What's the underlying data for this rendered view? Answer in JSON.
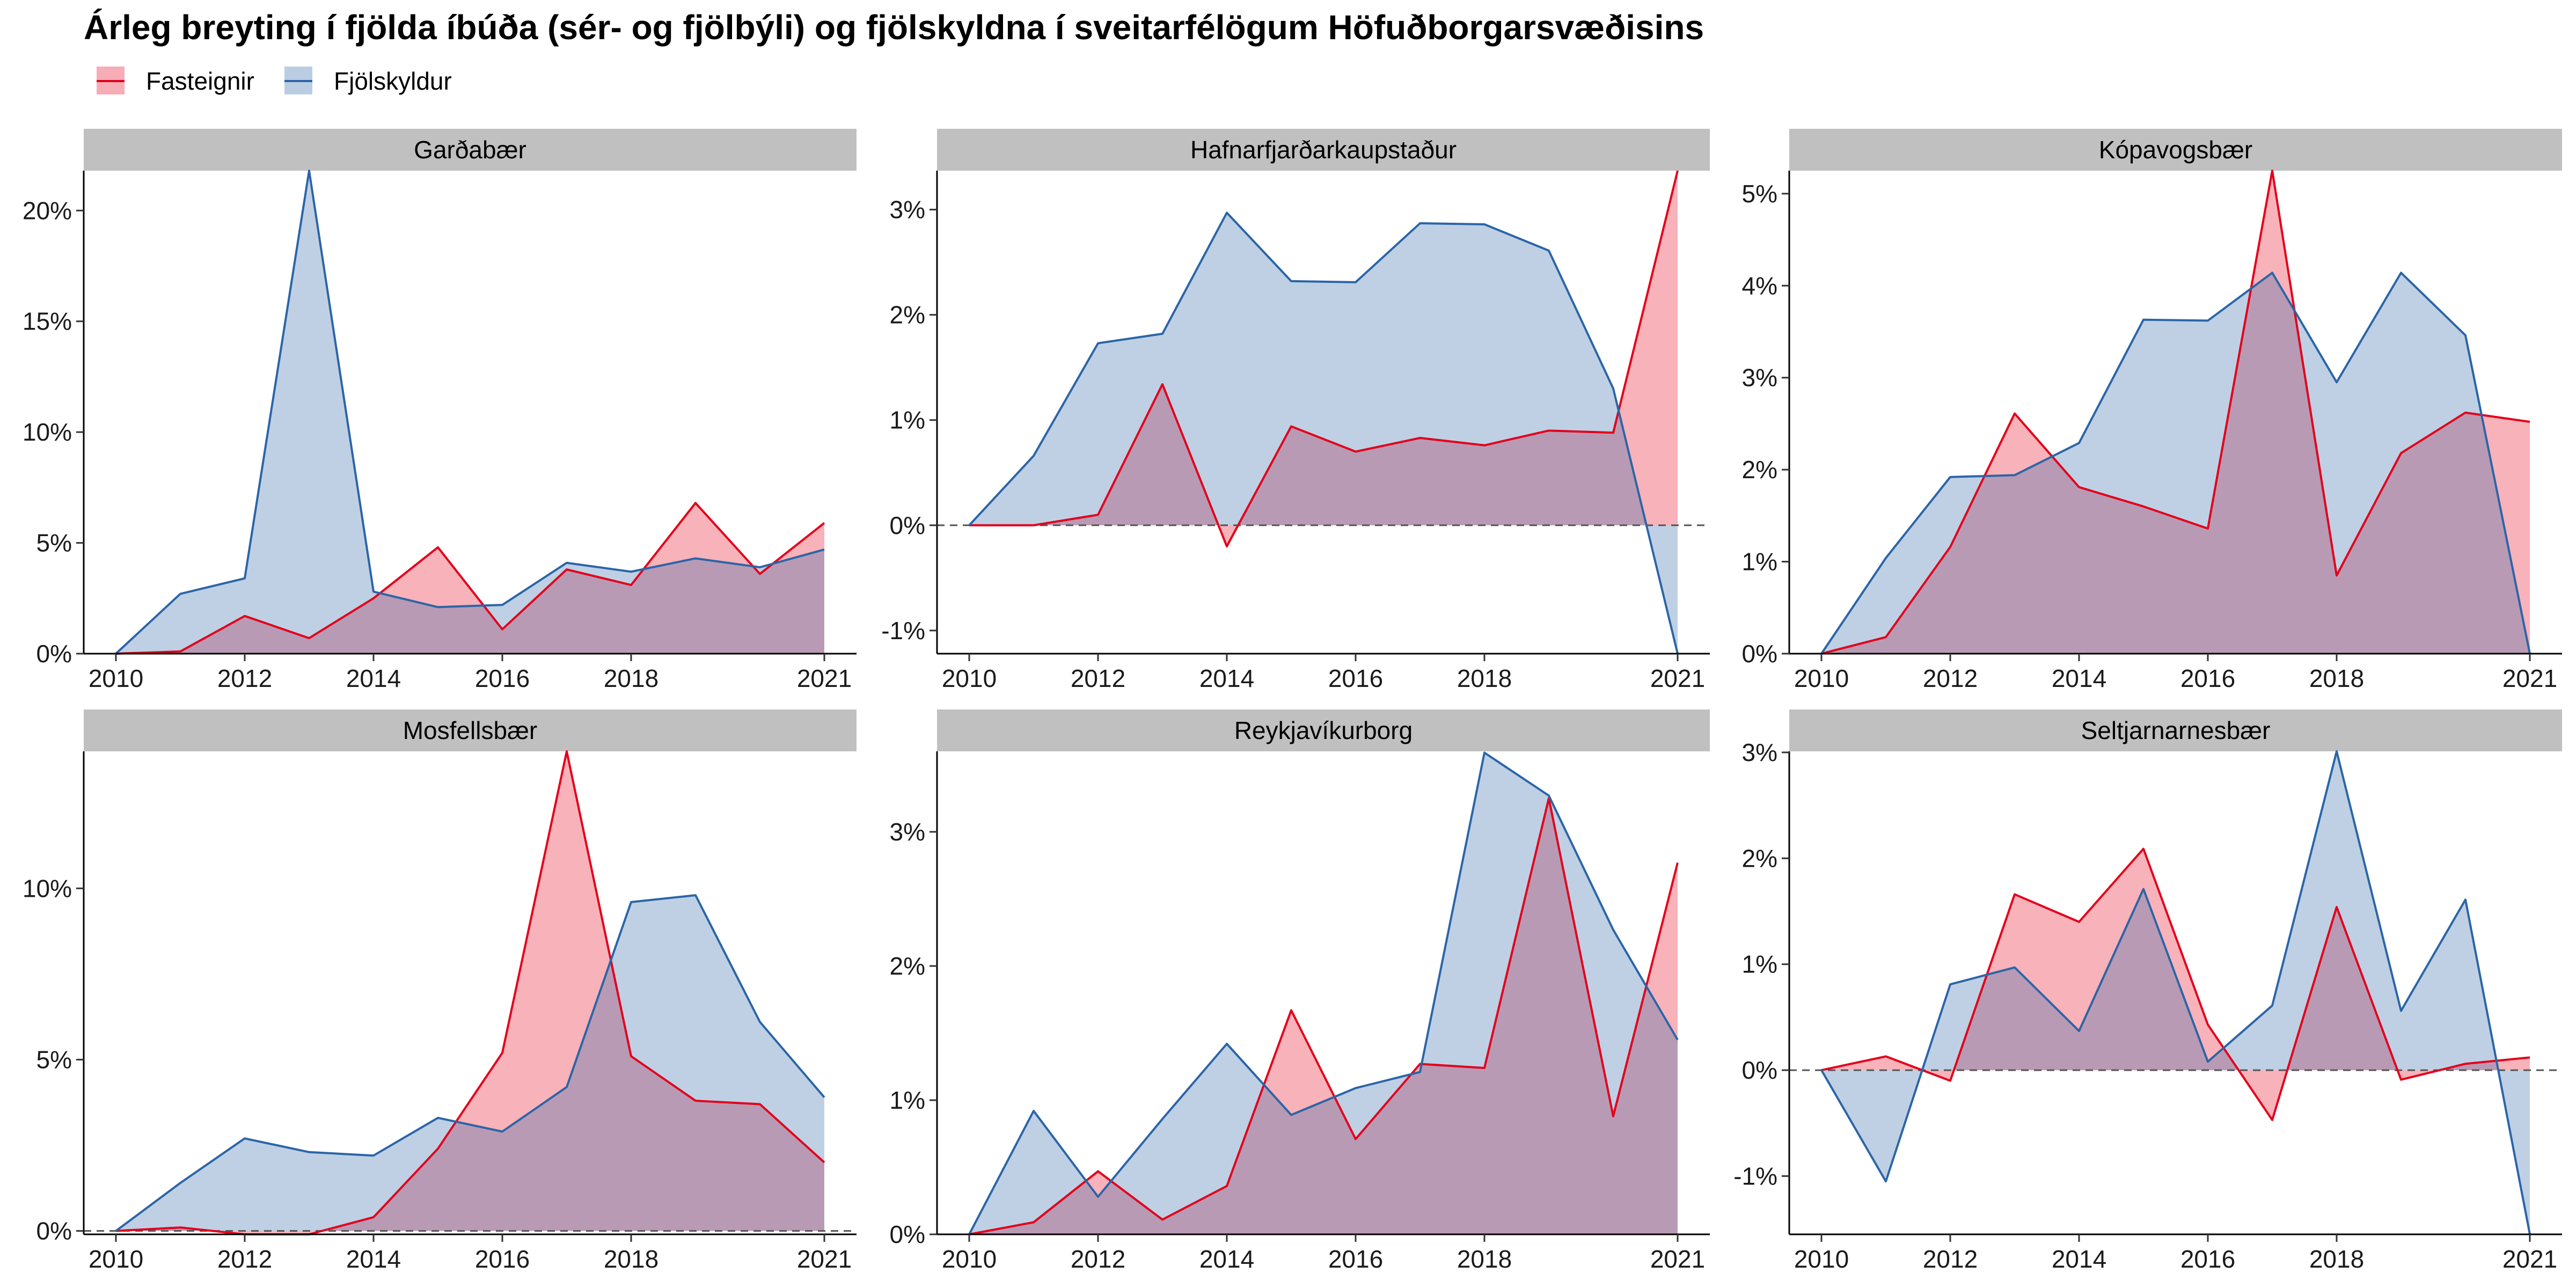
{
  "title": "Árleg breyting í fjölda íbúða (sér- og fjölbýli) og fjölskyldna í sveitarfélögum Höfuðborgarsvæðisins",
  "colors": {
    "fasteignir": "#e3001b",
    "fjolskyldur": "#2b65a7",
    "strip": "#c0c0c0"
  },
  "legend": [
    {
      "label": "Fasteignir",
      "key": "fasteignir"
    },
    {
      "label": "Fjölskyldur",
      "key": "fjolskyldur"
    }
  ],
  "chart_data": [
    {
      "type": "area",
      "facet": "Garðabær",
      "x": [
        2010,
        2011,
        2012,
        2013,
        2014,
        2015,
        2016,
        2017,
        2018,
        2019,
        2020,
        2021
      ],
      "xticks": [
        2010,
        2012,
        2014,
        2016,
        2018,
        2021
      ],
      "ylim": [
        0,
        0.218
      ],
      "yticks": [
        0,
        0.05,
        0.1,
        0.15,
        0.2
      ],
      "ytick_labels": [
        "0%",
        "5%",
        "10%",
        "15%",
        "20%"
      ],
      "zero_line": false,
      "series": [
        {
          "name": "Fasteignir",
          "values": [
            0,
            0.001,
            0.017,
            0.007,
            0.025,
            0.048,
            0.011,
            0.038,
            0.031,
            0.068,
            0.036,
            0.059
          ]
        },
        {
          "name": "Fjölskyldur",
          "values": [
            0,
            0.027,
            0.034,
            0.218,
            0.028,
            0.021,
            0.022,
            0.041,
            0.037,
            0.043,
            0.039,
            0.047
          ]
        }
      ]
    },
    {
      "type": "area",
      "facet": "Hafnarfjarðarkaupstaður",
      "x": [
        2010,
        2011,
        2012,
        2013,
        2014,
        2015,
        2016,
        2017,
        2018,
        2019,
        2020,
        2021
      ],
      "xticks": [
        2010,
        2012,
        2014,
        2016,
        2018,
        2021
      ],
      "ylim": [
        -0.0122,
        0.0337
      ],
      "yticks": [
        -0.01,
        0,
        0.01,
        0.02,
        0.03
      ],
      "ytick_labels": [
        "-1%",
        "0%",
        "1%",
        "2%",
        "3%"
      ],
      "zero_line": true,
      "series": [
        {
          "name": "Fasteignir",
          "values": [
            0,
            0,
            0.001,
            0.0134,
            -0.002,
            0.0094,
            0.007,
            0.0083,
            0.0076,
            0.009,
            0.0088,
            0.0337
          ]
        },
        {
          "name": "Fjölskyldur",
          "values": [
            0,
            0.0066,
            0.0173,
            0.0182,
            0.0297,
            0.0232,
            0.0231,
            0.0287,
            0.0286,
            0.0261,
            0.013,
            -0.0122
          ]
        }
      ]
    },
    {
      "type": "area",
      "facet": "Kópavogsbær",
      "x": [
        2010,
        2011,
        2012,
        2013,
        2014,
        2015,
        2016,
        2017,
        2018,
        2019,
        2020,
        2021
      ],
      "xticks": [
        2010,
        2012,
        2014,
        2016,
        2018,
        2021
      ],
      "ylim": [
        0,
        0.0525
      ],
      "yticks": [
        0,
        0.01,
        0.02,
        0.03,
        0.04,
        0.05
      ],
      "ytick_labels": [
        "0%",
        "1%",
        "2%",
        "3%",
        "4%",
        "5%"
      ],
      "zero_line": false,
      "series": [
        {
          "name": "Fasteignir",
          "values": [
            0,
            0.0018,
            0.0116,
            0.0261,
            0.0181,
            0.016,
            0.0136,
            0.0525,
            0.0085,
            0.0218,
            0.0262,
            0.0252
          ]
        },
        {
          "name": "Fjölskyldur",
          "values": [
            0,
            0.0104,
            0.0192,
            0.0194,
            0.0229,
            0.0363,
            0.0362,
            0.0414,
            0.0295,
            0.0414,
            0.0346,
            0
          ]
        }
      ]
    },
    {
      "type": "area",
      "facet": "Mosfellsbær",
      "x": [
        2010,
        2011,
        2012,
        2013,
        2014,
        2015,
        2016,
        2017,
        2018,
        2019,
        2020,
        2021
      ],
      "xticks": [
        2010,
        2012,
        2014,
        2016,
        2018,
        2021
      ],
      "ylim": [
        -0.001,
        0.14
      ],
      "yticks": [
        0,
        0.05,
        0.1
      ],
      "ytick_labels": [
        "0%",
        "5%",
        "10%"
      ],
      "zero_line": true,
      "series": [
        {
          "name": "Fasteignir",
          "values": [
            0,
            0.001,
            -0.001,
            -0.001,
            0.004,
            0.024,
            0.052,
            0.14,
            0.051,
            0.038,
            0.037,
            0.02
          ]
        },
        {
          "name": "Fjölskyldur",
          "values": [
            0,
            0.014,
            0.027,
            0.023,
            0.022,
            0.033,
            0.029,
            0.042,
            0.096,
            0.098,
            0.061,
            0.039
          ]
        }
      ]
    },
    {
      "type": "area",
      "facet": "Reykjavíkurborg",
      "x": [
        2010,
        2011,
        2012,
        2013,
        2014,
        2015,
        2016,
        2017,
        2018,
        2019,
        2020,
        2021
      ],
      "xticks": [
        2010,
        2012,
        2014,
        2016,
        2018,
        2021
      ],
      "ylim": [
        0,
        0.036
      ],
      "yticks": [
        0,
        0.01,
        0.02,
        0.03
      ],
      "ytick_labels": [
        "0%",
        "1%",
        "2%",
        "3%"
      ],
      "zero_line": false,
      "series": [
        {
          "name": "Fasteignir",
          "values": [
            0,
            0.0009,
            0.0047,
            0.0011,
            0.0036,
            0.0167,
            0.0071,
            0.0127,
            0.0124,
            0.0325,
            0.0088,
            0.0277
          ]
        },
        {
          "name": "Fjölskyldur",
          "values": [
            0,
            0.0092,
            0.0028,
            0.0086,
            0.0142,
            0.0089,
            0.0109,
            0.0121,
            0.0359,
            0.0327,
            0.0227,
            0.0145
          ]
        }
      ]
    },
    {
      "type": "area",
      "facet": "Seltjarnarnesbær",
      "x": [
        2010,
        2011,
        2012,
        2013,
        2014,
        2015,
        2016,
        2017,
        2018,
        2019,
        2020,
        2021
      ],
      "xticks": [
        2010,
        2012,
        2014,
        2016,
        2018,
        2021
      ],
      "ylim": [
        -0.0155,
        0.0301
      ],
      "yticks": [
        -0.01,
        0,
        0.01,
        0.02,
        0.03
      ],
      "ytick_labels": [
        "-1%",
        "0%",
        "1%",
        "2%",
        "3%"
      ],
      "zero_line": true,
      "series": [
        {
          "name": "Fasteignir",
          "values": [
            0,
            0.0013,
            -0.001,
            0.0166,
            0.014,
            0.0209,
            0.0043,
            -0.0047,
            0.0154,
            -0.0009,
            0.0006,
            0.0012
          ]
        },
        {
          "name": "Fjölskyldur",
          "values": [
            0,
            -0.0105,
            0.0081,
            0.0097,
            0.0037,
            0.0171,
            0.0008,
            0.0061,
            0.0301,
            0.0056,
            0.0161,
            -0.0155
          ]
        }
      ]
    }
  ]
}
